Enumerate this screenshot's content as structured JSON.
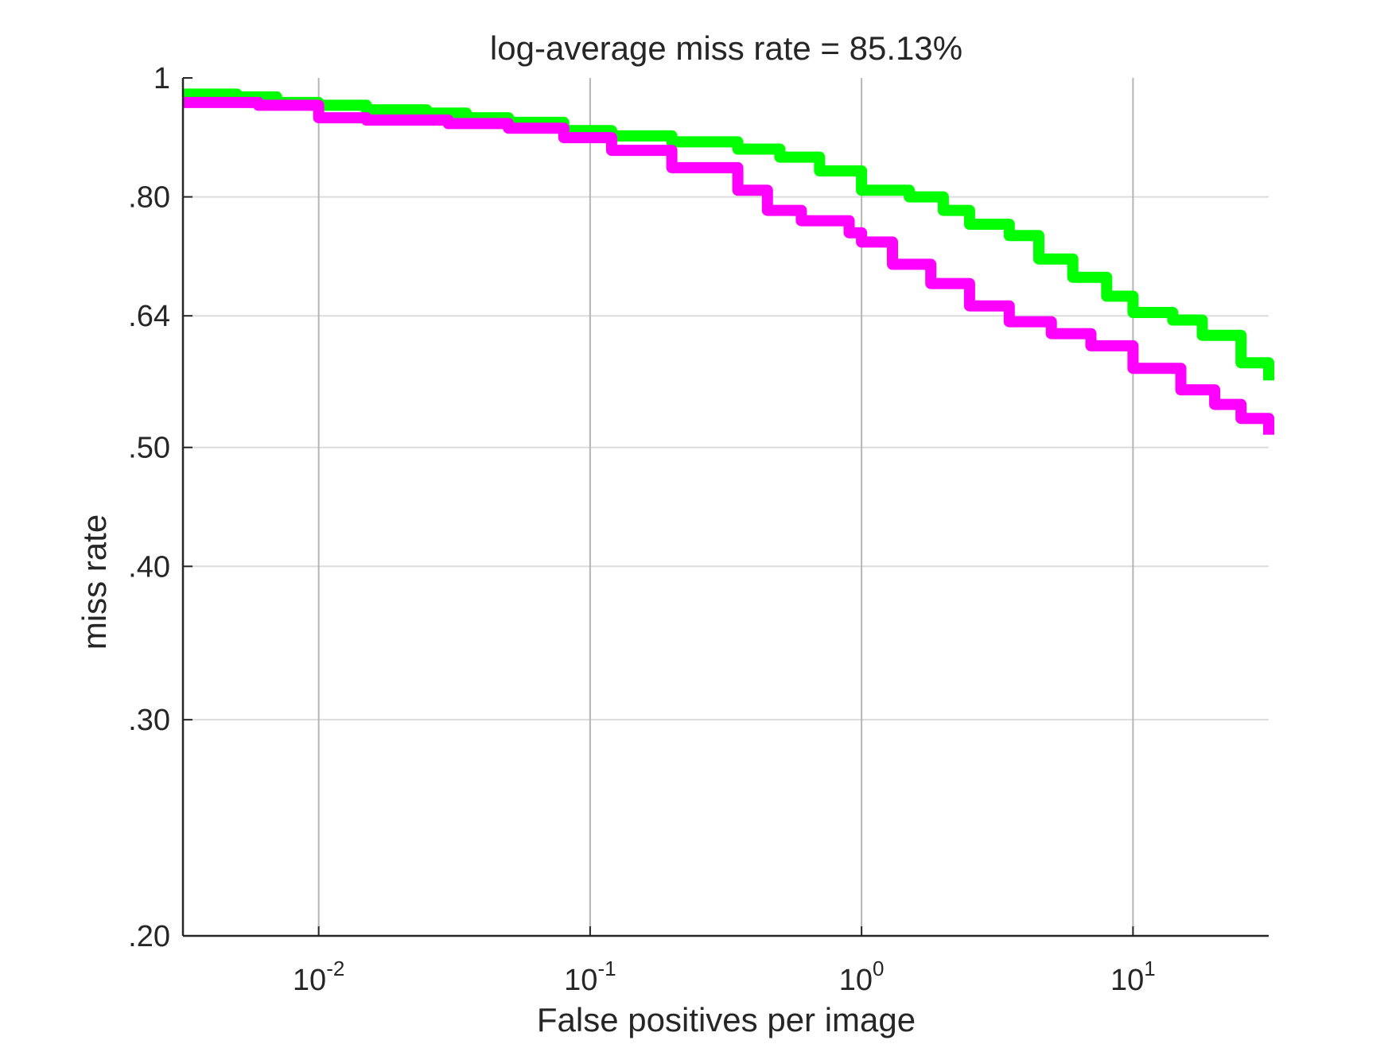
{
  "chart_data": {
    "type": "line",
    "title": "log-average miss rate = 85.13%",
    "xlabel": "False positives per image",
    "ylabel": "miss rate",
    "x_scale": "log",
    "y_scale": "log",
    "xlim": [
      0.003162,
      31.62
    ],
    "ylim": [
      0.2,
      1.0
    ],
    "grid": true,
    "x_ticks": [
      {
        "value": 0.01,
        "base": "10",
        "exp": "-2"
      },
      {
        "value": 0.1,
        "base": "10",
        "exp": "-1"
      },
      {
        "value": 1,
        "base": "10",
        "exp": "0"
      },
      {
        "value": 10,
        "base": "10",
        "exp": "1"
      }
    ],
    "y_ticks": [
      {
        "value": 1.0,
        "label": "1"
      },
      {
        "value": 0.8,
        "label": ".80"
      },
      {
        "value": 0.64,
        "label": ".64"
      },
      {
        "value": 0.5,
        "label": ".50"
      },
      {
        "value": 0.4,
        "label": ".40"
      },
      {
        "value": 0.3,
        "label": ".30"
      },
      {
        "value": 0.2,
        "label": ".20"
      }
    ],
    "series": [
      {
        "name": "green",
        "color": "#00ff00",
        "x": [
          0.003162,
          0.005,
          0.007,
          0.01,
          0.015,
          0.025,
          0.035,
          0.05,
          0.08,
          0.12,
          0.2,
          0.35,
          0.5,
          0.7,
          1.0,
          1.5,
          2.0,
          2.5,
          3.5,
          4.5,
          6.0,
          8.0,
          10.0,
          14.0,
          18.0,
          25.0,
          31.62
        ],
        "y": [
          0.97,
          0.965,
          0.955,
          0.95,
          0.942,
          0.936,
          0.928,
          0.92,
          0.906,
          0.897,
          0.887,
          0.875,
          0.862,
          0.84,
          0.81,
          0.8,
          0.78,
          0.76,
          0.744,
          0.712,
          0.688,
          0.664,
          0.644,
          0.635,
          0.617,
          0.586,
          0.567
        ]
      },
      {
        "name": "magenta",
        "color": "#ff00ff",
        "x": [
          0.003162,
          0.006,
          0.01,
          0.015,
          0.03,
          0.05,
          0.08,
          0.12,
          0.2,
          0.35,
          0.45,
          0.6,
          0.9,
          1.0,
          1.3,
          1.8,
          2.5,
          3.5,
          5.0,
          7.0,
          10.0,
          15.0,
          20.0,
          25.0,
          31.62
        ],
        "y": [
          0.955,
          0.95,
          0.928,
          0.924,
          0.918,
          0.91,
          0.894,
          0.873,
          0.845,
          0.81,
          0.78,
          0.765,
          0.748,
          0.735,
          0.705,
          0.68,
          0.652,
          0.633,
          0.619,
          0.605,
          0.58,
          0.557,
          0.542,
          0.528,
          0.512
        ]
      }
    ]
  }
}
